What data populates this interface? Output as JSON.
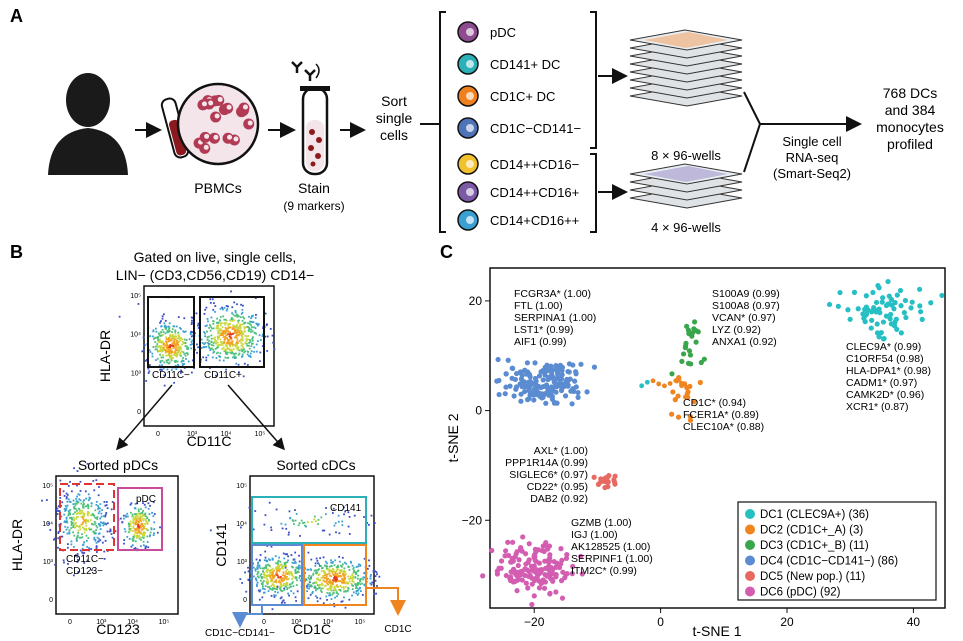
{
  "panels": {
    "a": "A",
    "b": "B",
    "c": "C"
  },
  "panel_a": {
    "pbmcs": "PBMCs",
    "stain": "Stain",
    "stain_sub": "(9 markers)",
    "sort": [
      "Sort",
      "single",
      "cells"
    ],
    "dc_types": [
      {
        "label": "pDC",
        "color": "#8e4b8f"
      },
      {
        "label": "CD141+ DC",
        "color": "#2bb0b8"
      },
      {
        "label": "CD1C+ DC",
        "color": "#f07f1d"
      },
      {
        "label": "CD1C−CD141−",
        "color": "#4f73b8"
      }
    ],
    "mono_types": [
      {
        "label": "CD14++CD16−",
        "color": "#f2c22e"
      },
      {
        "label": "CD14++CD16+",
        "color": "#7c5aa6"
      },
      {
        "label": "CD14+CD16++",
        "color": "#3aa0d2"
      }
    ],
    "plate1_label": "8 × 96-wells",
    "plate2_label": "4 × 96-wells",
    "seq": [
      "Single cell",
      "RNA-seq",
      "(Smart-Seq2)"
    ],
    "result": [
      "768 DCs",
      "and 384",
      "monocytes",
      "profiled"
    ]
  },
  "panel_b": {
    "gate_title_1": "Gated on live, single cells,",
    "gate_title_2": "LIN− (CD3,CD56,CD19) CD14−",
    "top_ylabel": "HLA-DR",
    "top_xlabel": "CD11C",
    "gate_left": "CD11C−",
    "gate_right": "CD11C+",
    "pdc_title": "Sorted pDCs",
    "pdc_ylabel": "HLA-DR",
    "pdc_xlabel": "CD123",
    "pdc_gate": "pDC",
    "pdc_neg_1": "CD11C−",
    "pdc_neg_2": "CD123−",
    "cdc_title": "Sorted cDCs",
    "cdc_ylabel": "CD141",
    "cdc_xlabel": "CD1C",
    "cdc_gate": "CD141",
    "cdc_out_left": "CD1C−CD141−",
    "cdc_out_right": "CD1C",
    "ticks_y": [
      "10⁵",
      "10⁴",
      "10³",
      "0"
    ],
    "ticks_x": [
      "0",
      "10³",
      "10⁴",
      "10⁵"
    ]
  },
  "chart_data": {
    "type": "scatter",
    "xlabel": "t-SNE 1",
    "ylabel": "t-SNE 2",
    "xlim": [
      -27,
      45
    ],
    "ylim": [
      -36,
      26
    ],
    "xticks": [
      -20,
      0,
      20,
      40
    ],
    "yticks": [
      20,
      0,
      -20
    ],
    "legend_position": "bottom-right",
    "series": [
      {
        "name": "DC1 (CLEC9A+) (36)",
        "color": "#25bfc4",
        "center": [
          35,
          18
        ],
        "spread": [
          4.5,
          3.5
        ]
      },
      {
        "name": "DC2 (CD1C+_A) (3)",
        "color": "#f0841f",
        "center": [
          4,
          2
        ],
        "spread": [
          1.8,
          3.5
        ]
      },
      {
        "name": "DC3 (CD1C+_B) (11)",
        "color": "#3aa64b",
        "center": [
          4.5,
          12
        ],
        "spread": [
          1.3,
          4
        ]
      },
      {
        "name": "DC4 (CD1C−CD141−) (86)",
        "color": "#5b8bd0",
        "center": [
          -19,
          5
        ],
        "spread": [
          4.5,
          3
        ]
      },
      {
        "name": "DC5 (New pop.) (11)",
        "color": "#e66a62",
        "center": [
          -8.5,
          -13
        ],
        "spread": [
          1.3,
          0.9
        ]
      },
      {
        "name": "DC6 (pDC) (92)",
        "color": "#d35db0",
        "center": [
          -20,
          -29
        ],
        "spread": [
          4.5,
          3
        ]
      }
    ],
    "annotations": [
      {
        "lines": [
          "FCGR3A* (1.00)",
          "FTL (1.00)",
          "SERPINA1 (1.00)",
          "LST1* (0.99)",
          "AIF1 (0.99)"
        ]
      },
      {
        "lines": [
          "S100A9 (0.99)",
          "S100A8 (0.97)",
          "VCAN* (0.97)",
          "LYZ (0.92)",
          "ANXA1 (0.92)"
        ]
      },
      {
        "lines": [
          "CLEC9A* (0.99)",
          "C1ORF54 (0.98)",
          "HLA-DPA1* (0.98)",
          "CADM1* (0.97)",
          "CAMK2D* (0.96)",
          "XCR1* (0.87)"
        ]
      },
      {
        "lines": [
          "CD1C* (0.94)",
          "FCER1A* (0.89)",
          "CLEC10A* (0.88)"
        ]
      },
      {
        "lines": [
          "AXL* (1.00)",
          "PPP1R14A (0.99)",
          "SIGLEC6* (0.97)",
          "CD22* (0.95)",
          "DAB2 (0.92)"
        ]
      },
      {
        "lines": [
          "GZMB (1.00)",
          "IGJ (1.00)",
          "AK128525 (1.00)",
          "SERPINF1 (1.00)",
          "ITM2C* (0.99)"
        ]
      }
    ]
  }
}
